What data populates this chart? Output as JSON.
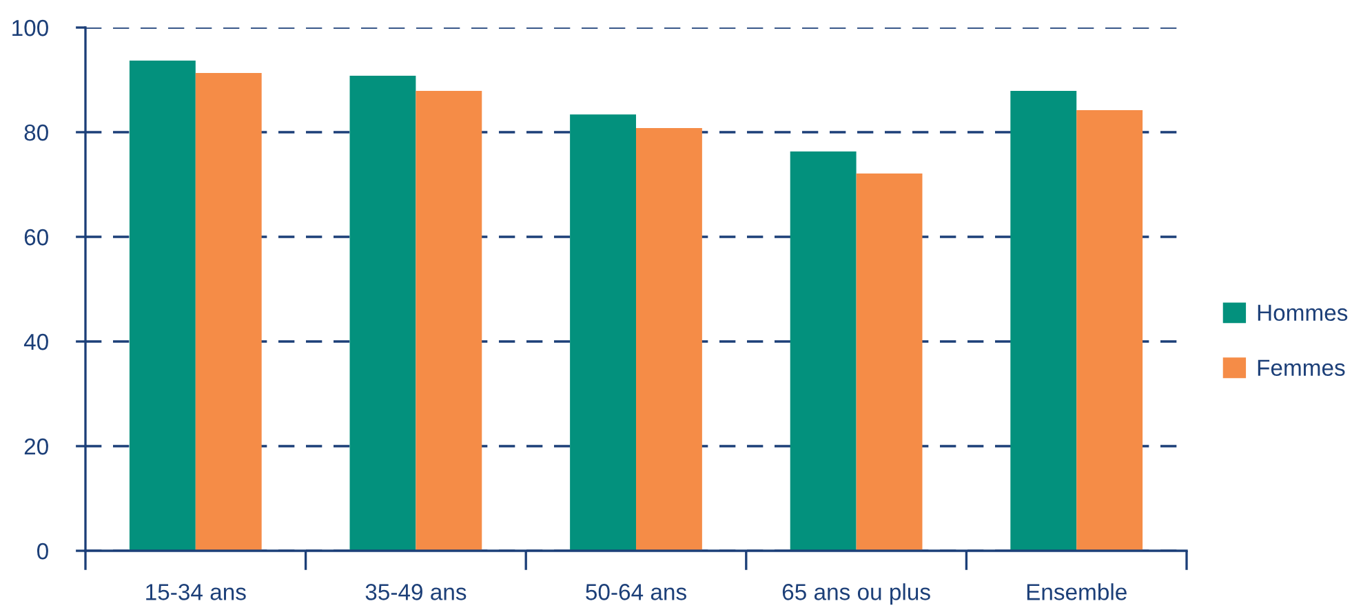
{
  "chart_data": {
    "type": "bar",
    "categories": [
      "15-34 ans",
      "35-49 ans",
      "50-64 ans",
      "65 ans ou plus",
      "Ensemble"
    ],
    "series": [
      {
        "name": "Hommes",
        "color": "#03917d",
        "values": [
          93.7,
          90.8,
          83.4,
          76.3,
          87.9
        ]
      },
      {
        "name": "Femmes",
        "color": "#f58c47",
        "values": [
          91.3,
          87.9,
          80.8,
          72.1,
          84.2
        ]
      }
    ],
    "ylim": [
      0,
      100
    ],
    "yticks": [
      0,
      20,
      40,
      60,
      80,
      100
    ],
    "grid": "y",
    "legend": "right"
  }
}
